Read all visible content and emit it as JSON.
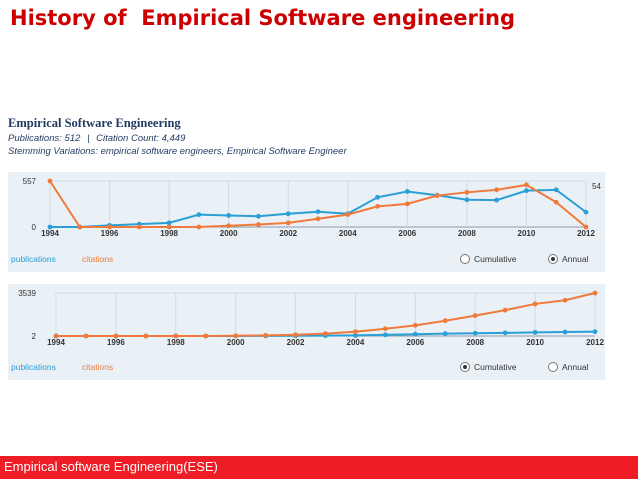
{
  "slide": {
    "title": "History of  Empirical Software engineering",
    "footer": "Empirical software Engineering(ESE)"
  },
  "panel": {
    "title": "Empirical Software Engineering",
    "publications_label": "Publications: 512",
    "separator": "|",
    "citation_label": "Citation Count: 4,449",
    "stemming": "Stemming Variations: empirical software engineers, Empirical Software Engineer"
  },
  "legend": {
    "publications": "publications",
    "citations": "citations",
    "cumulative": "Cumulative",
    "annual": "Annual"
  },
  "colors": {
    "publications": "#2a9fd6",
    "citations": "#f07a3c",
    "background": "#e9f0f6",
    "footer": "#ee1c24",
    "title": "#cc0000"
  },
  "chart_data": [
    {
      "type": "line",
      "mode": "Annual",
      "x": [
        1994,
        1995,
        1996,
        1997,
        1998,
        1999,
        2000,
        2001,
        2002,
        2003,
        2004,
        2005,
        2006,
        2007,
        2008,
        2009,
        2010,
        2011,
        2012
      ],
      "x_ticks": [
        "1994",
        "1996",
        "1998",
        "2000",
        "2002",
        "2004",
        "2006",
        "2008",
        "2010",
        "2012"
      ],
      "y_ticks": [
        "557",
        "0"
      ],
      "ylim": [
        0,
        557
      ],
      "end_label": "54",
      "series": [
        {
          "name": "publications",
          "values": [
            0,
            0,
            20,
            35,
            50,
            150,
            140,
            130,
            160,
            185,
            160,
            360,
            430,
            385,
            330,
            325,
            440,
            450,
            180
          ]
        },
        {
          "name": "citations",
          "values": [
            557,
            0,
            0,
            0,
            0,
            0,
            15,
            30,
            50,
            100,
            150,
            250,
            280,
            380,
            420,
            450,
            510,
            300,
            0
          ]
        }
      ]
    },
    {
      "type": "line",
      "mode": "Cumulative",
      "x": [
        1994,
        1995,
        1996,
        1997,
        1998,
        1999,
        2000,
        2001,
        2002,
        2003,
        2004,
        2005,
        2006,
        2007,
        2008,
        2009,
        2010,
        2011,
        2012
      ],
      "x_ticks": [
        "1994",
        "1996",
        "1998",
        "2000",
        "2002",
        "2004",
        "2006",
        "2008",
        "2010",
        "2012"
      ],
      "y_ticks": [
        "3539",
        "2"
      ],
      "ylim": [
        2,
        3539
      ],
      "series": [
        {
          "name": "publications",
          "values": [
            2,
            2,
            2,
            2,
            2,
            2,
            5,
            10,
            20,
            35,
            50,
            100,
            150,
            200,
            230,
            260,
            300,
            330,
            360
          ]
        },
        {
          "name": "citations",
          "values": [
            2,
            2,
            2,
            2,
            2,
            5,
            20,
            50,
            100,
            200,
            350,
            600,
            880,
            1260,
            1680,
            2130,
            2640,
            2940,
            3539
          ]
        }
      ]
    }
  ]
}
